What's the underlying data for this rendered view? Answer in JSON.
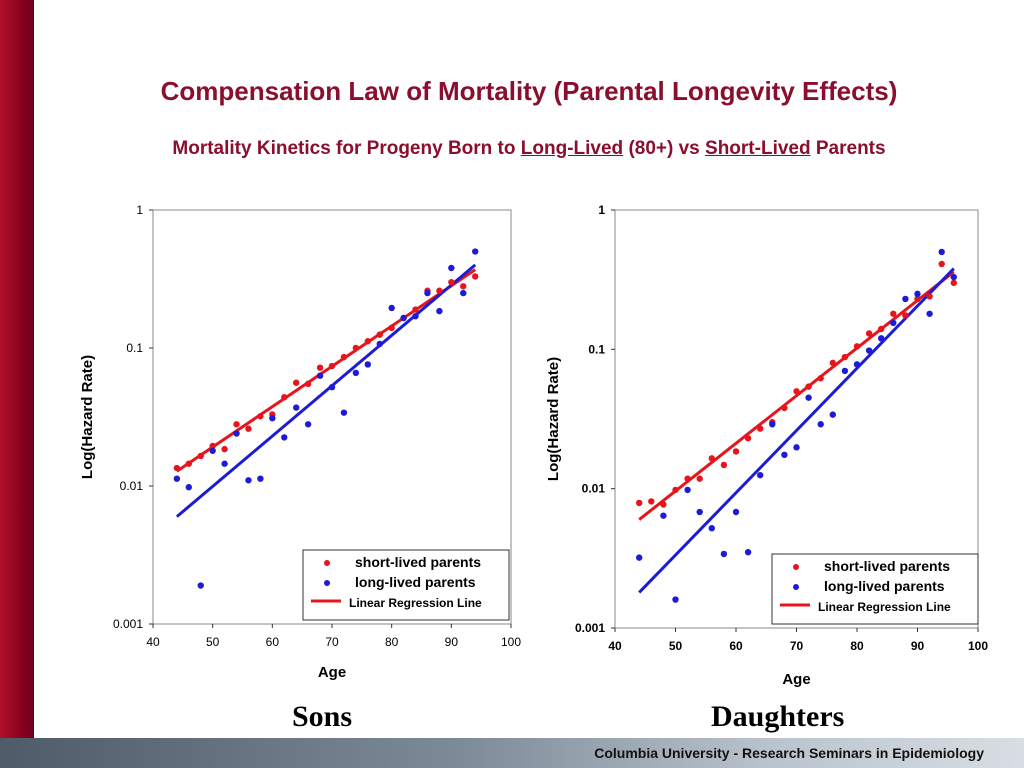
{
  "slide": {
    "title": "Compensation Law of Mortality (Parental Longevity Effects)",
    "subtitle": {
      "part1": "Mortality Kinetics for Progeny Born to ",
      "link1": "Long-Lived",
      "part2": " (80+) vs ",
      "link2": "Short-Lived",
      "part3": " Parents"
    },
    "footer": "Columbia University - Research Seminars in Epidemiology",
    "panel_labels": [
      "Sons",
      "Daughters"
    ],
    "colors": {
      "accent": "#8a0f2e",
      "short": "#e8141c",
      "long": "#1c1cd6",
      "regression": "#e8141c"
    }
  },
  "chart_data": [
    {
      "type": "scatter",
      "panel": "Sons",
      "xlabel": "Age",
      "ylabel": "Log(Hazard Rate)",
      "xlim": [
        40,
        100
      ],
      "ylim": [
        0.001,
        1
      ],
      "yscale": "log",
      "xticks": [
        "40",
        "50",
        "60",
        "70",
        "80",
        "90",
        "100"
      ],
      "yticks": [
        "0.001",
        "0.01",
        "0.1",
        "1"
      ],
      "legend": {
        "position": "bottom-right",
        "entries": [
          "short-lived parents",
          "long-lived parents",
          "Linear Regression Line"
        ]
      },
      "series": [
        {
          "name": "short-lived parents",
          "color": "#e8141c",
          "points": [
            [
              44,
              0.0135
            ],
            [
              46,
              0.0145
            ],
            [
              48,
              0.0165
            ],
            [
              50,
              0.0195
            ],
            [
              52,
              0.0185
            ],
            [
              54,
              0.028
            ],
            [
              56,
              0.026
            ],
            [
              58,
              0.032
            ],
            [
              60,
              0.033
            ],
            [
              62,
              0.044
            ],
            [
              64,
              0.056
            ],
            [
              66,
              0.055
            ],
            [
              68,
              0.072
            ],
            [
              70,
              0.074
            ],
            [
              72,
              0.086
            ],
            [
              74,
              0.1
            ],
            [
              76,
              0.112
            ],
            [
              78,
              0.125
            ],
            [
              80,
              0.14
            ],
            [
              82,
              0.165
            ],
            [
              84,
              0.19
            ],
            [
              86,
              0.26
            ],
            [
              88,
              0.26
            ],
            [
              90,
              0.3
            ],
            [
              92,
              0.28
            ],
            [
              94,
              0.33
            ]
          ],
          "fit": [
            [
              44,
              0.0128
            ],
            [
              94,
              0.37
            ]
          ]
        },
        {
          "name": "long-lived parents",
          "color": "#1c1cd6",
          "points": [
            [
              44,
              0.0113
            ],
            [
              46,
              0.0098
            ],
            [
              48,
              0.0019
            ],
            [
              50,
              0.018
            ],
            [
              52,
              0.0145
            ],
            [
              54,
              0.024
            ],
            [
              56,
              0.011
            ],
            [
              58,
              0.0113
            ],
            [
              60,
              0.031
            ],
            [
              62,
              0.0225
            ],
            [
              64,
              0.037
            ],
            [
              66,
              0.028
            ],
            [
              68,
              0.063
            ],
            [
              70,
              0.052
            ],
            [
              72,
              0.034
            ],
            [
              74,
              0.066
            ],
            [
              76,
              0.076
            ],
            [
              78,
              0.107
            ],
            [
              80,
              0.195
            ],
            [
              82,
              0.165
            ],
            [
              84,
              0.17
            ],
            [
              86,
              0.25
            ],
            [
              88,
              0.185
            ],
            [
              90,
              0.38
            ],
            [
              92,
              0.25
            ],
            [
              94,
              0.5
            ]
          ],
          "fit": [
            [
              44,
              0.006
            ],
            [
              94,
              0.4
            ]
          ]
        }
      ]
    },
    {
      "type": "scatter",
      "panel": "Daughters",
      "xlabel": "Age",
      "ylabel": "Log(Hazard Rate)",
      "xlim": [
        40,
        100
      ],
      "ylim": [
        0.001,
        1
      ],
      "yscale": "log",
      "xticks": [
        "40",
        "50",
        "60",
        "70",
        "80",
        "90",
        "100"
      ],
      "yticks": [
        "0.001",
        "0.01",
        "0.1",
        "1"
      ],
      "legend": {
        "position": "bottom-right",
        "entries": [
          "short-lived parents",
          "long-lived parents",
          "Linear Regression Line"
        ]
      },
      "series": [
        {
          "name": "short-lived parents",
          "color": "#e8141c",
          "points": [
            [
              44,
              0.0079
            ],
            [
              46,
              0.0081
            ],
            [
              48,
              0.0077
            ],
            [
              50,
              0.0098
            ],
            [
              52,
              0.0118
            ],
            [
              54,
              0.0118
            ],
            [
              56,
              0.0165
            ],
            [
              58,
              0.0148
            ],
            [
              60,
              0.0185
            ],
            [
              62,
              0.023
            ],
            [
              64,
              0.027
            ],
            [
              66,
              0.03
            ],
            [
              68,
              0.038
            ],
            [
              70,
              0.05
            ],
            [
              72,
              0.054
            ],
            [
              74,
              0.062
            ],
            [
              76,
              0.08
            ],
            [
              78,
              0.088
            ],
            [
              80,
              0.105
            ],
            [
              82,
              0.13
            ],
            [
              84,
              0.14
            ],
            [
              86,
              0.18
            ],
            [
              88,
              0.175
            ],
            [
              90,
              0.23
            ],
            [
              92,
              0.24
            ],
            [
              94,
              0.41
            ],
            [
              96,
              0.3
            ]
          ],
          "fit": [
            [
              44,
              0.006
            ],
            [
              96,
              0.36
            ]
          ]
        },
        {
          "name": "long-lived parents",
          "color": "#1c1cd6",
          "points": [
            [
              44,
              0.0032
            ],
            [
              48,
              0.0064
            ],
            [
              50,
              0.0016
            ],
            [
              52,
              0.0098
            ],
            [
              54,
              0.0068
            ],
            [
              56,
              0.0052
            ],
            [
              58,
              0.0034
            ],
            [
              60,
              0.0068
            ],
            [
              62,
              0.0035
            ],
            [
              64,
              0.0125
            ],
            [
              66,
              0.029
            ],
            [
              68,
              0.0175
            ],
            [
              70,
              0.0198
            ],
            [
              72,
              0.045
            ],
            [
              74,
              0.029
            ],
            [
              76,
              0.034
            ],
            [
              78,
              0.07
            ],
            [
              80,
              0.078
            ],
            [
              82,
              0.098
            ],
            [
              84,
              0.12
            ],
            [
              86,
              0.155
            ],
            [
              88,
              0.23
            ],
            [
              90,
              0.25
            ],
            [
              92,
              0.18
            ],
            [
              94,
              0.5
            ],
            [
              96,
              0.33
            ]
          ],
          "fit": [
            [
              44,
              0.0018
            ],
            [
              96,
              0.38
            ]
          ]
        }
      ]
    }
  ]
}
